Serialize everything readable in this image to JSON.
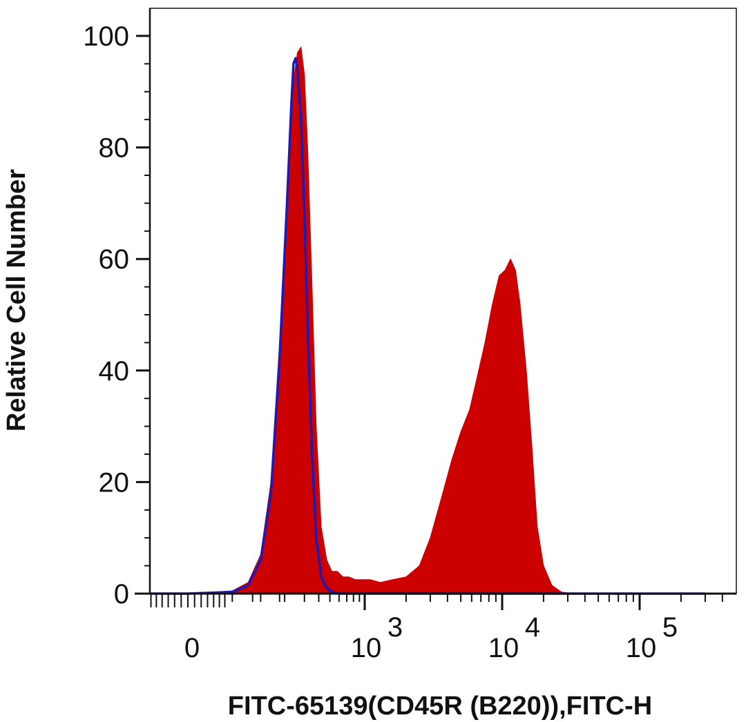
{
  "chart_data": {
    "type": "area",
    "title": "",
    "xlabel": "FITC-65139(CD45R (B220)),FITC-H",
    "ylabel": "Relative Cell Number",
    "ylim": [
      0,
      100
    ],
    "yticks": [
      0,
      20,
      40,
      60,
      80,
      100
    ],
    "y_tick_labels": [
      "0",
      "20",
      "40",
      "60",
      "80",
      "100"
    ],
    "x_scale": "biexponential",
    "x_tick_labels": [
      {
        "value": 0,
        "base": "0",
        "exp": ""
      },
      {
        "value": 1000,
        "base": "10",
        "exp": "3"
      },
      {
        "value": 10000,
        "base": "10",
        "exp": "4"
      },
      {
        "value": 100000,
        "base": "10",
        "exp": "5"
      }
    ],
    "grid": false,
    "legend": "none",
    "series": [
      {
        "style": "filled",
        "color": "#cc0000",
        "x": [
          -300,
          0,
          60,
          90,
          120,
          150,
          180,
          210,
          240,
          260,
          280,
          300,
          320,
          350,
          380,
          420,
          470,
          520,
          580,
          650,
          730,
          830,
          950,
          1100,
          1300,
          1600,
          2000,
          2500,
          3000,
          3600,
          4300,
          5000,
          5800,
          6600,
          7500,
          8500,
          9500,
          10500,
          11500,
          12500,
          13500,
          15000,
          16500,
          18000,
          20000,
          23000,
          27000,
          32000,
          40000,
          60000,
          100000,
          300000
        ],
        "y": [
          0,
          0,
          0.5,
          2,
          7,
          20,
          45,
          72,
          92,
          97,
          98,
          93,
          80,
          55,
          30,
          12,
          6,
          4,
          4,
          3,
          3,
          2.5,
          2.5,
          2.5,
          2,
          2.5,
          3,
          5,
          10,
          17,
          24,
          29,
          33,
          39,
          45,
          52,
          57,
          58,
          60,
          58,
          52,
          40,
          26,
          12,
          5,
          1.5,
          0.3,
          0,
          0,
          0,
          0,
          0
        ]
      },
      {
        "style": "line",
        "color": "#1a1ab8",
        "x": [
          -300,
          0,
          60,
          90,
          120,
          150,
          180,
          210,
          230,
          240,
          250,
          260,
          280,
          300,
          320,
          350,
          380,
          420,
          470,
          520,
          600,
          800,
          2000,
          10000,
          100000,
          300000
        ],
        "y": [
          0,
          0,
          0.3,
          1.5,
          6,
          18,
          42,
          70,
          88,
          95,
          96,
          94,
          85,
          68,
          48,
          25,
          10,
          3,
          1,
          0.3,
          0,
          0,
          0,
          0,
          0,
          0
        ]
      }
    ]
  }
}
